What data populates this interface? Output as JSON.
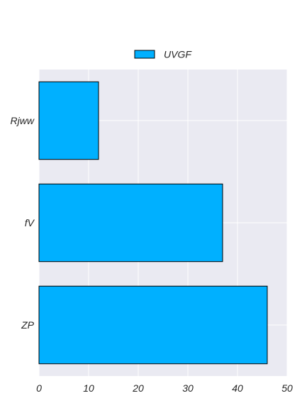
{
  "chart_data": {
    "type": "bar",
    "orientation": "horizontal",
    "categories": [
      "Rjww",
      "fV",
      "ZP"
    ],
    "series": [
      {
        "name": "UVGF",
        "values": [
          12,
          37,
          46
        ]
      }
    ],
    "xlim": [
      0,
      50
    ],
    "xticks": [
      "0",
      "10",
      "20",
      "30",
      "40",
      "50"
    ],
    "grid": true,
    "legend": {
      "placement": "top-center"
    },
    "colors": {
      "bar": "#00b0ff",
      "bar_edge": "#000000",
      "plot_background": "#eaeaf2",
      "grid": "#ffffff"
    }
  }
}
